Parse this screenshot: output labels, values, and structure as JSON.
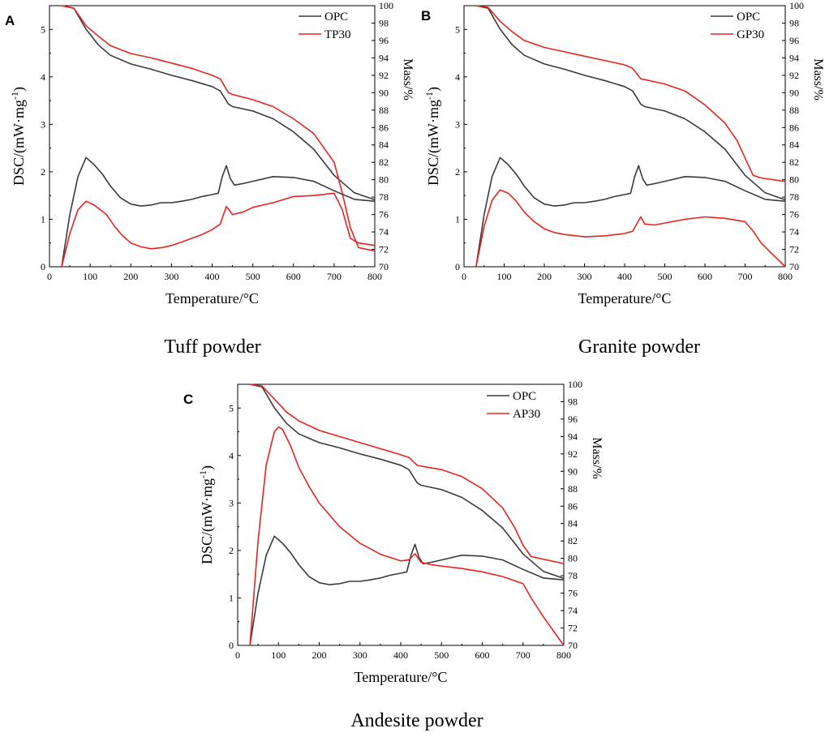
{
  "chart_data": [
    {
      "type": "line",
      "panel_label": "A",
      "caption": "Tuff powder",
      "xlabel": "Temperature/°C",
      "ylabel_left": "DSC/(mW·mg",
      "ylabel_left_sup": "-1",
      "ylabel_left_close": ")",
      "ylabel_right": "Mass/%",
      "xlim": [
        0,
        800
      ],
      "ylim_left": [
        0,
        5.5
      ],
      "ylim_right": [
        70,
        100
      ],
      "x_ticks": [
        "0",
        "100",
        "200",
        "300",
        "400",
        "500",
        "600",
        "700",
        "800"
      ],
      "y_left_ticks": [
        "0",
        "1",
        "2",
        "3",
        "4",
        "5"
      ],
      "y_right_ticks": [
        "70",
        "72",
        "74",
        "76",
        "78",
        "80",
        "82",
        "84",
        "86",
        "88",
        "90",
        "92",
        "94",
        "96",
        "98",
        "100"
      ],
      "legend": [
        "OPC",
        "TP30"
      ],
      "colors": [
        "#3a3a3a",
        "#e8231f"
      ],
      "series": [
        {
          "name": "OPC",
          "kind": "mass",
          "axis": "right",
          "x": [
            30,
            60,
            90,
            120,
            150,
            200,
            250,
            300,
            350,
            400,
            420,
            440,
            450,
            500,
            550,
            600,
            650,
            700,
            750,
            800
          ],
          "values": [
            100,
            99.7,
            97.3,
            95.5,
            94.3,
            93.3,
            92.7,
            92.0,
            91.4,
            90.7,
            90.2,
            88.7,
            88.4,
            87.9,
            87.0,
            85.5,
            83.5,
            80.5,
            78.5,
            77.7
          ]
        },
        {
          "name": "TP30",
          "kind": "mass",
          "axis": "right",
          "x": [
            30,
            60,
            90,
            120,
            150,
            200,
            250,
            300,
            350,
            400,
            420,
            440,
            450,
            500,
            550,
            600,
            650,
            700,
            720,
            740,
            760,
            800
          ],
          "values": [
            100,
            99.7,
            97.7,
            96.5,
            95.4,
            94.5,
            94.0,
            93.4,
            92.8,
            92.0,
            91.6,
            90.0,
            89.8,
            89.2,
            88.4,
            87.0,
            85.3,
            82.0,
            78.5,
            74.5,
            72.2,
            71.8
          ]
        },
        {
          "name": "OPC",
          "kind": "dsc",
          "axis": "left",
          "x": [
            30,
            50,
            70,
            90,
            110,
            130,
            150,
            175,
            200,
            225,
            250,
            275,
            300,
            325,
            350,
            375,
            400,
            415,
            425,
            435,
            445,
            455,
            475,
            500,
            550,
            600,
            650,
            700,
            750,
            800
          ],
          "values": [
            0,
            1.1,
            1.9,
            2.3,
            2.15,
            1.95,
            1.7,
            1.45,
            1.32,
            1.28,
            1.3,
            1.35,
            1.35,
            1.38,
            1.42,
            1.48,
            1.52,
            1.55,
            1.9,
            2.13,
            1.85,
            1.72,
            1.75,
            1.8,
            1.9,
            1.88,
            1.8,
            1.6,
            1.42,
            1.38
          ]
        },
        {
          "name": "TP30",
          "kind": "dsc",
          "axis": "left",
          "x": [
            30,
            50,
            70,
            90,
            110,
            140,
            160,
            180,
            200,
            225,
            250,
            275,
            300,
            325,
            350,
            375,
            400,
            420,
            435,
            450,
            475,
            500,
            550,
            600,
            650,
            700,
            720,
            740,
            760,
            800
          ],
          "values": [
            0,
            0.7,
            1.2,
            1.38,
            1.3,
            1.1,
            0.85,
            0.65,
            0.5,
            0.42,
            0.38,
            0.4,
            0.45,
            0.52,
            0.6,
            0.68,
            0.78,
            0.9,
            1.27,
            1.1,
            1.15,
            1.25,
            1.35,
            1.48,
            1.5,
            1.55,
            1.2,
            0.6,
            0.5,
            0.45
          ]
        }
      ]
    },
    {
      "type": "line",
      "panel_label": "B",
      "caption": "Granite powder",
      "xlabel": "Temperature/°C",
      "ylabel_left": "DSC/(mW·mg",
      "ylabel_left_sup": "-1",
      "ylabel_left_close": ")",
      "ylabel_right": "Mass/%",
      "xlim": [
        0,
        800
      ],
      "ylim_left": [
        0,
        5.5
      ],
      "ylim_right": [
        70,
        100
      ],
      "x_ticks": [
        "0",
        "100",
        "200",
        "300",
        "400",
        "500",
        "600",
        "700",
        "800"
      ],
      "y_left_ticks": [
        "0",
        "1",
        "2",
        "3",
        "4",
        "5"
      ],
      "y_right_ticks": [
        "70",
        "72",
        "74",
        "76",
        "78",
        "80",
        "82",
        "84",
        "86",
        "88",
        "90",
        "92",
        "94",
        "96",
        "98",
        "100"
      ],
      "legend": [
        "OPC",
        "GP30"
      ],
      "colors": [
        "#3a3a3a",
        "#e8231f"
      ],
      "series": [
        {
          "name": "OPC",
          "kind": "mass",
          "axis": "right",
          "x": [
            30,
            60,
            90,
            120,
            150,
            200,
            250,
            300,
            350,
            400,
            420,
            440,
            450,
            500,
            550,
            600,
            650,
            700,
            750,
            800
          ],
          "values": [
            100,
            99.7,
            97.3,
            95.5,
            94.3,
            93.3,
            92.7,
            92.0,
            91.4,
            90.7,
            90.2,
            88.7,
            88.4,
            87.9,
            87.0,
            85.5,
            83.5,
            80.5,
            78.5,
            77.7
          ]
        },
        {
          "name": "GP30",
          "kind": "mass",
          "axis": "right",
          "x": [
            30,
            60,
            90,
            120,
            150,
            200,
            250,
            300,
            350,
            400,
            420,
            440,
            450,
            500,
            550,
            600,
            650,
            680,
            700,
            720,
            740,
            800
          ],
          "values": [
            100,
            99.8,
            98.2,
            97.0,
            96.0,
            95.2,
            94.7,
            94.2,
            93.7,
            93.2,
            92.8,
            91.6,
            91.5,
            91.0,
            90.2,
            88.6,
            86.5,
            84.5,
            82.5,
            80.5,
            80.2,
            79.8
          ]
        },
        {
          "name": "OPC",
          "kind": "dsc",
          "axis": "left",
          "x": [
            30,
            50,
            70,
            90,
            110,
            130,
            150,
            175,
            200,
            225,
            250,
            275,
            300,
            325,
            350,
            375,
            400,
            415,
            425,
            435,
            445,
            455,
            475,
            500,
            550,
            600,
            650,
            700,
            750,
            800
          ],
          "values": [
            0,
            1.1,
            1.9,
            2.3,
            2.15,
            1.95,
            1.7,
            1.45,
            1.32,
            1.28,
            1.3,
            1.35,
            1.35,
            1.38,
            1.42,
            1.48,
            1.52,
            1.55,
            1.9,
            2.13,
            1.85,
            1.72,
            1.75,
            1.8,
            1.9,
            1.88,
            1.8,
            1.6,
            1.42,
            1.38
          ]
        },
        {
          "name": "GP30",
          "kind": "dsc",
          "axis": "left",
          "x": [
            30,
            50,
            70,
            90,
            110,
            130,
            150,
            175,
            200,
            225,
            250,
            300,
            350,
            400,
            420,
            430,
            440,
            450,
            475,
            500,
            550,
            600,
            650,
            700,
            720,
            740,
            770,
            800
          ],
          "values": [
            0,
            0.85,
            1.4,
            1.62,
            1.55,
            1.38,
            1.15,
            0.95,
            0.8,
            0.72,
            0.68,
            0.63,
            0.65,
            0.7,
            0.75,
            0.9,
            1.05,
            0.9,
            0.88,
            0.92,
            1.0,
            1.05,
            1.02,
            0.95,
            0.75,
            0.5,
            0.25,
            0.0
          ]
        }
      ]
    },
    {
      "type": "line",
      "panel_label": "C",
      "caption": "Andesite powder",
      "xlabel": "Temperature/°C",
      "ylabel_left": "DSC/(mW·mg",
      "ylabel_left_sup": "-1",
      "ylabel_left_close": ")",
      "ylabel_right": "Mass/%",
      "xlim": [
        0,
        800
      ],
      "ylim_left": [
        0,
        5.5
      ],
      "ylim_right": [
        70,
        100
      ],
      "x_ticks": [
        "0",
        "100",
        "200",
        "300",
        "400",
        "500",
        "600",
        "700",
        "800"
      ],
      "y_left_ticks": [
        "0",
        "1",
        "2",
        "3",
        "4",
        "5"
      ],
      "y_right_ticks": [
        "70",
        "72",
        "74",
        "76",
        "78",
        "80",
        "82",
        "84",
        "86",
        "88",
        "90",
        "92",
        "94",
        "96",
        "98",
        "100"
      ],
      "legend": [
        "OPC",
        "AP30"
      ],
      "colors": [
        "#3a3a3a",
        "#e8231f"
      ],
      "series": [
        {
          "name": "OPC",
          "kind": "mass",
          "axis": "right",
          "x": [
            30,
            60,
            90,
            120,
            150,
            200,
            250,
            300,
            350,
            400,
            420,
            440,
            450,
            500,
            550,
            600,
            650,
            700,
            750,
            800
          ],
          "values": [
            100,
            99.7,
            97.3,
            95.5,
            94.3,
            93.3,
            92.7,
            92.0,
            91.4,
            90.7,
            90.2,
            88.7,
            88.4,
            87.9,
            87.0,
            85.5,
            83.5,
            80.5,
            78.5,
            77.7
          ]
        },
        {
          "name": "AP30",
          "kind": "mass",
          "axis": "right",
          "x": [
            30,
            60,
            90,
            120,
            150,
            200,
            250,
            300,
            350,
            400,
            420,
            440,
            450,
            500,
            550,
            600,
            650,
            680,
            700,
            720,
            760,
            800
          ],
          "values": [
            100,
            99.8,
            98.3,
            96.8,
            95.8,
            94.7,
            94.0,
            93.3,
            92.6,
            91.9,
            91.6,
            90.7,
            90.6,
            90.2,
            89.4,
            88.0,
            85.8,
            83.5,
            81.5,
            80.2,
            79.8,
            79.4
          ]
        },
        {
          "name": "OPC",
          "kind": "dsc",
          "axis": "left",
          "x": [
            30,
            50,
            70,
            90,
            110,
            130,
            150,
            175,
            200,
            225,
            250,
            275,
            300,
            325,
            350,
            375,
            400,
            415,
            425,
            435,
            445,
            455,
            475,
            500,
            550,
            600,
            650,
            700,
            750,
            800
          ],
          "values": [
            0,
            1.1,
            1.9,
            2.3,
            2.15,
            1.95,
            1.7,
            1.45,
            1.32,
            1.28,
            1.3,
            1.35,
            1.35,
            1.38,
            1.42,
            1.48,
            1.52,
            1.55,
            1.9,
            2.13,
            1.85,
            1.72,
            1.75,
            1.8,
            1.9,
            1.88,
            1.8,
            1.6,
            1.42,
            1.38
          ]
        },
        {
          "name": "AP30",
          "kind": "dsc",
          "axis": "left",
          "x": [
            30,
            50,
            70,
            90,
            100,
            110,
            130,
            150,
            175,
            200,
            250,
            300,
            350,
            400,
            420,
            435,
            450,
            475,
            500,
            550,
            600,
            650,
            700,
            720,
            750,
            800
          ],
          "values": [
            0,
            2.2,
            3.8,
            4.5,
            4.6,
            4.55,
            4.2,
            3.75,
            3.35,
            3.0,
            2.5,
            2.15,
            1.92,
            1.78,
            1.8,
            1.93,
            1.75,
            1.7,
            1.67,
            1.62,
            1.55,
            1.45,
            1.3,
            1.0,
            0.6,
            0.0
          ]
        }
      ]
    }
  ]
}
